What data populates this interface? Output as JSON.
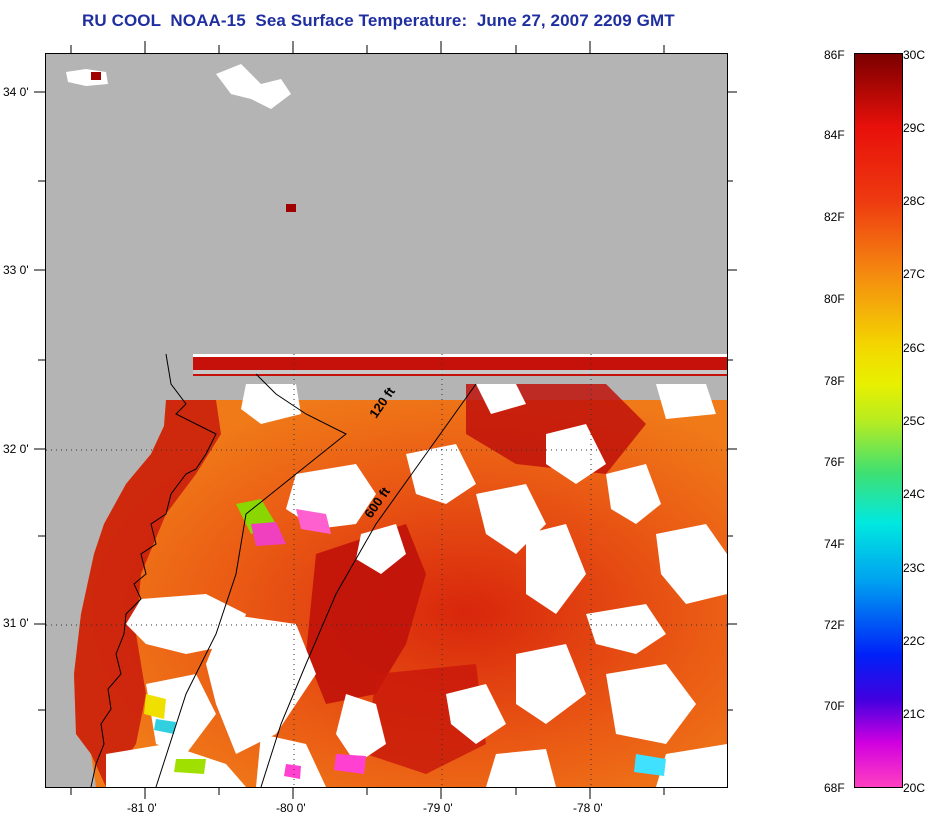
{
  "title": "RU COOL  NOAA-15  Sea Surface Temperature:  June 27, 2007 2209 GMT",
  "latitude_labels": [
    "34 0'",
    "33 0'",
    "32 0'",
    "31 0'"
  ],
  "longitude_labels": [
    "-81 0'",
    "-80 0'",
    "-79 0'",
    "-78 0'"
  ],
  "contour_labels": [
    "120 ft",
    "600 ft"
  ],
  "colorbar": {
    "fahrenheit_labels": [
      "86F",
      "84F",
      "82F",
      "80F",
      "78F",
      "76F",
      "74F",
      "72F",
      "70F",
      "68F"
    ],
    "celsius_labels": [
      "30C",
      "29C",
      "28C",
      "27C",
      "26C",
      "25C",
      "24C",
      "23C",
      "22C",
      "21C",
      "20C"
    ],
    "range_c": [
      20,
      30
    ],
    "range_f": [
      68,
      86
    ]
  },
  "colors": {
    "title": "#1f2fa0",
    "land": "#b4b4b4",
    "cloud": "#ffffff",
    "warm_sea": "#e84a12",
    "hot_sea": "#c8140a"
  }
}
